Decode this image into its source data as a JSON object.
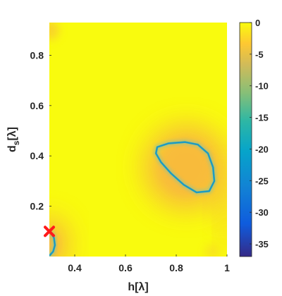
{
  "chart_data": {
    "type": "heatmap",
    "title": "",
    "xlabel": "h[λ]",
    "ylabel_main": "d",
    "ylabel_sub": "s",
    "ylabel_tail": "[λ]",
    "xlim": [
      0.3,
      1.0
    ],
    "ylim": [
      0.0,
      0.93
    ],
    "x_ticks": [
      "0.4",
      "0.6",
      "0.8",
      "1"
    ],
    "y_ticks": [
      "0.2",
      "0.4",
      "0.6",
      "0.8"
    ],
    "x_tick_values": [
      0.4,
      0.6,
      0.8,
      1.0
    ],
    "y_tick_values": [
      0.2,
      0.4,
      0.6,
      0.8
    ],
    "colorbar": {
      "colormap": "parula",
      "range": [
        -37,
        0
      ],
      "ticks": [
        "0",
        "-5",
        "-10",
        "-15",
        "-20",
        "-25",
        "-30",
        "-35"
      ],
      "tick_values": [
        0,
        -5,
        -10,
        -15,
        -20,
        -25,
        -30,
        -35
      ]
    },
    "background_value": 0,
    "contour_level": -20,
    "contours": [
      {
        "name": "",
        "points": [
          [
            0.835,
            0.455
          ],
          [
            0.885,
            0.445
          ],
          [
            0.925,
            0.41
          ],
          [
            0.945,
            0.355
          ],
          [
            0.95,
            0.3
          ],
          [
            0.93,
            0.26
          ],
          [
            0.88,
            0.255
          ],
          [
            0.83,
            0.285
          ],
          [
            0.78,
            0.33
          ],
          [
            0.74,
            0.375
          ],
          [
            0.72,
            0.41
          ],
          [
            0.725,
            0.435
          ],
          [
            0.77,
            0.45
          ],
          [
            0.835,
            0.455
          ]
        ],
        "closed": true
      },
      {
        "name": "",
        "points": [
          [
            0.302,
            0.1
          ],
          [
            0.318,
            0.075
          ],
          [
            0.322,
            0.045
          ],
          [
            0.315,
            0.02
          ],
          [
            0.302,
            0.005
          ]
        ],
        "closed": false
      }
    ],
    "marker": {
      "x": 0.3,
      "y": 0.1,
      "symbol": "x",
      "color": "#ff1a1a"
    }
  },
  "colors": {
    "high": "#f9fb0e",
    "mid": "#f8ba3c",
    "low": "#21a8c2",
    "deep": "#352a87",
    "marker": "#ff1a1a"
  }
}
